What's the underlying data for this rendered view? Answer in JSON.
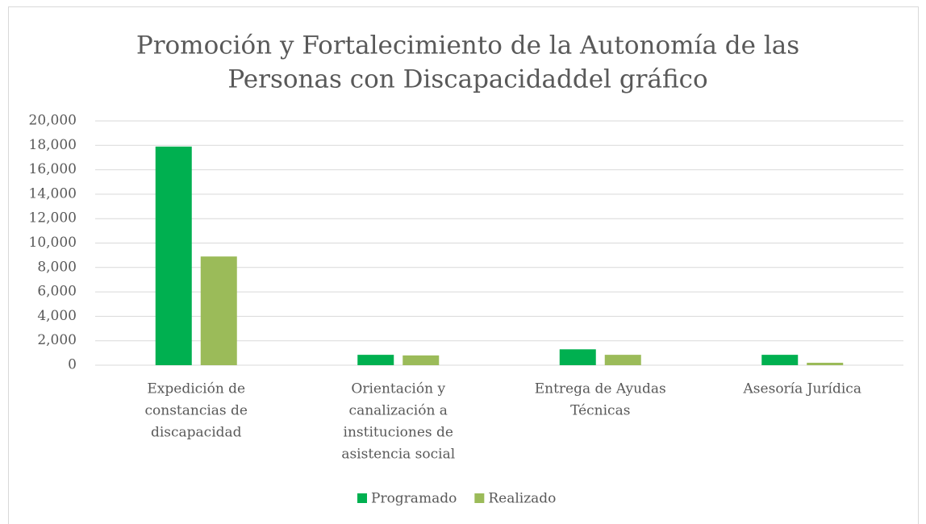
{
  "chart_data": {
    "type": "bar",
    "title": [
      "Promoción y Fortalecimiento de la Autonomía de las",
      "Personas con Discapacidaddel gráfico"
    ],
    "categories": [
      [
        "Expedición de",
        "constancias de",
        "discapacidad"
      ],
      [
        "Orientación y",
        "canalización a",
        "instituciones de",
        "asistencia social"
      ],
      [
        "Entrega de Ayudas",
        "Técnicas"
      ],
      [
        "Asesoría Jurídica"
      ]
    ],
    "series": [
      {
        "name": "Programado",
        "color": "#00b050",
        "values": [
          17900,
          850,
          1300,
          850
        ]
      },
      {
        "name": "Realizado",
        "color": "#9bbb59",
        "values": [
          8900,
          800,
          850,
          200
        ]
      }
    ],
    "ylim": [
      0,
      20000
    ],
    "yticks": [
      0,
      {
        "value": 2000,
        "label": "2,000"
      },
      {
        "value": 4000,
        "label": "4,000"
      },
      {
        "value": 6000,
        "label": "6,000"
      },
      {
        "value": 8000,
        "label": "8,000"
      },
      {
        "value": 10000,
        "label": "10,000"
      },
      {
        "value": 12000,
        "label": "12,000"
      },
      {
        "value": 14000,
        "label": "14,000"
      },
      {
        "value": 16000,
        "label": "16,000"
      },
      {
        "value": 18000,
        "label": "18,000"
      },
      {
        "value": 20000,
        "label": "20,000"
      }
    ],
    "grid": true,
    "legend": "bottom"
  }
}
